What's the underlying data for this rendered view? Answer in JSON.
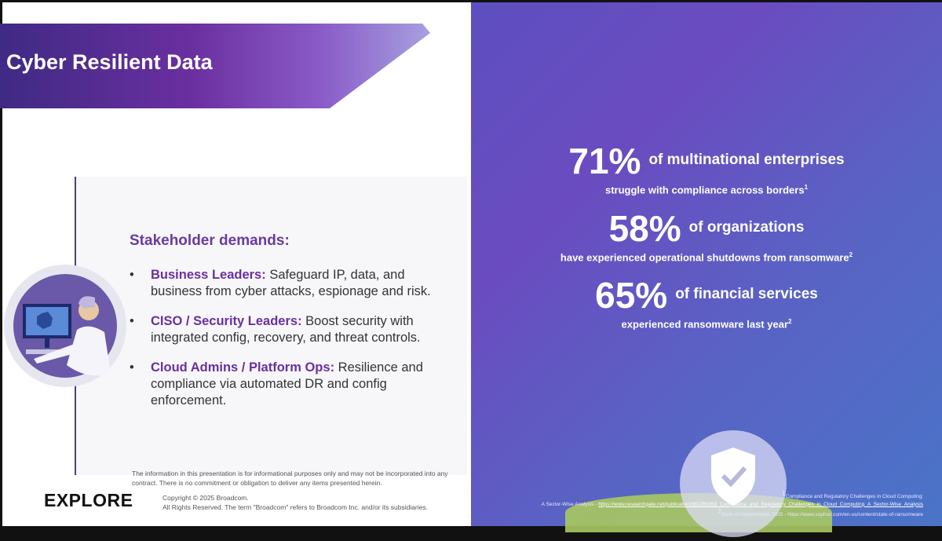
{
  "slide": {
    "title": "Cyber Resilient Data"
  },
  "stakeholders": {
    "heading": "Stakeholder demands:",
    "items": [
      {
        "role": "Business Leaders:",
        "text": " Safeguard IP, data, and business from cyber attacks, espionage and risk."
      },
      {
        "role": "CISO / Security Leaders:",
        "text": " Boost security with integrated config, recovery, and threat controls."
      },
      {
        "role": "Cloud Admins / Platform Ops:",
        "text": " Resilience and compliance via automated DR and config enforcement."
      }
    ]
  },
  "disclaimer": "The information in this presentation is for informational purposes only and may not be incorporated into any contract. There is no commitment or obligation to deliver any items presented herein.",
  "footer": {
    "logo": "EXPLORE",
    "copyright": "Copyright © 2025 Broadcom.",
    "rights": "All Rights Reserved. The term \"Broadcom\" refers to Broadcom Inc. and/or its subsidiaries."
  },
  "stats": [
    {
      "value": "71%",
      "lead": "of multinational enterprises",
      "sub": "struggle with compliance across borders",
      "ref": "1"
    },
    {
      "value": "58%",
      "lead": "of organizations",
      "sub": "have experienced operational shutdowns from ransomware",
      "ref": "2"
    },
    {
      "value": "65%",
      "lead": "of financial services",
      "sub": "experienced ransomware last year",
      "ref": "2"
    }
  ],
  "references": {
    "r1_num": "1",
    "r1_title": "Compliance and Regulatory Challenges in Cloud Computing:",
    "r1_prefix": "A Sector-Wise Analysis - ",
    "r1_url": "https://www.researchgate.net/publication/382265359_Compliance_and_Regulatory_Challenges_in_Cloud_Computing_A_Sector-Wise_Analysis",
    "r2_num": "2",
    "r2_text": "State of Ransomware 2025 - https://www.sophos.com/en-us/content/state-of-ransomware"
  },
  "colors": {
    "accent_purple": "#6a2fa0",
    "right_bg": "#5a62c4"
  }
}
